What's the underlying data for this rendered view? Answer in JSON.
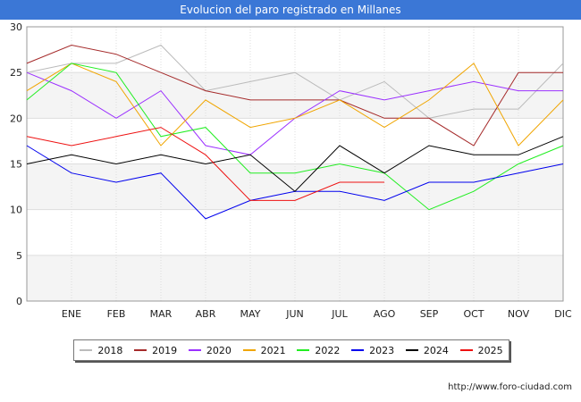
{
  "chart_data": {
    "type": "line",
    "title": "Evolucion del paro registrado en Millanes",
    "categories": [
      "",
      "ENE",
      "FEB",
      "MAR",
      "ABR",
      "MAY",
      "JUN",
      "JUL",
      "AGO",
      "SEP",
      "OCT",
      "NOV",
      "DIC"
    ],
    "ylim": [
      0,
      30
    ],
    "yticks": [
      0,
      5,
      10,
      15,
      20,
      25,
      30
    ],
    "grid": true,
    "legend_position": "bottom",
    "series": [
      {
        "name": "2018",
        "color": "#bbbbbb",
        "values": [
          25,
          26,
          26,
          28,
          23,
          24,
          25,
          22,
          24,
          20,
          21,
          21,
          26
        ]
      },
      {
        "name": "2019",
        "color": "#a52a2a",
        "values": [
          26,
          28,
          27,
          25,
          23,
          22,
          22,
          22,
          20,
          20,
          17,
          25,
          25
        ]
      },
      {
        "name": "2020",
        "color": "#9b30ff",
        "values": [
          25,
          23,
          20,
          23,
          17,
          16,
          20,
          23,
          22,
          23,
          24,
          23,
          23
        ]
      },
      {
        "name": "2021",
        "color": "#f0a500",
        "values": [
          23,
          26,
          24,
          17,
          22,
          19,
          20,
          22,
          19,
          22,
          26,
          17,
          22
        ]
      },
      {
        "name": "2022",
        "color": "#22ee22",
        "values": [
          22,
          26,
          25,
          18,
          19,
          14,
          14,
          15,
          14,
          10,
          12,
          15,
          17
        ]
      },
      {
        "name": "2023",
        "color": "#0000ee",
        "values": [
          17,
          14,
          13,
          14,
          9,
          11,
          12,
          12,
          11,
          13,
          13,
          14,
          15
        ]
      },
      {
        "name": "2024",
        "color": "#000000",
        "values": [
          15,
          16,
          15,
          16,
          15,
          16,
          12,
          17,
          14,
          17,
          16,
          16,
          18
        ]
      },
      {
        "name": "2025",
        "color": "#ee1111",
        "values": [
          18,
          17,
          18,
          19,
          16,
          11,
          11,
          13,
          13,
          null,
          null,
          null,
          null
        ]
      }
    ]
  },
  "footer": {
    "url": "http://www.foro-ciudad.com"
  }
}
